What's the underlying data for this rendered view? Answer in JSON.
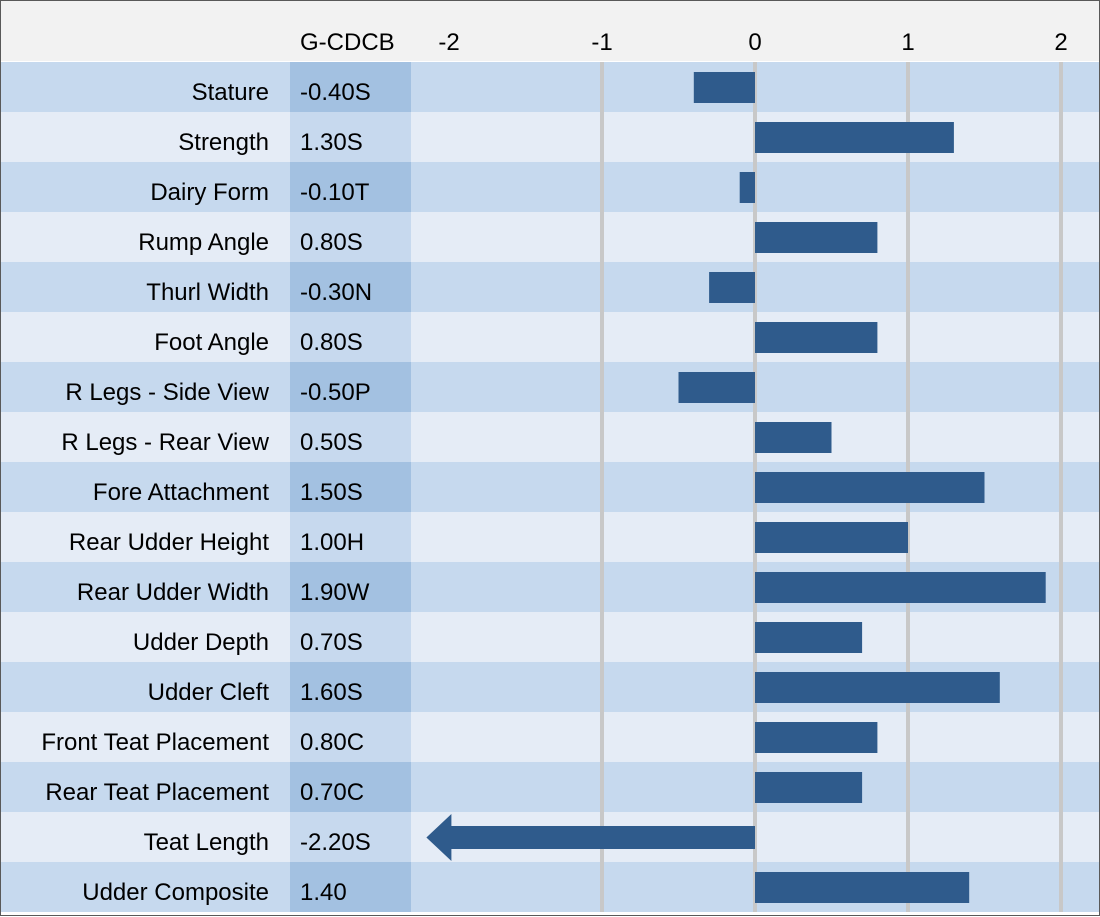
{
  "header": {
    "column_label": "G-CDCB"
  },
  "chart_data": {
    "type": "bar",
    "orientation": "horizontal",
    "xlim": [
      -2.2,
      2.1
    ],
    "xticks": [
      "-2",
      "-1",
      "0",
      "1",
      "2"
    ],
    "grid": "vertical lines at ticks",
    "colors": {
      "bar": "#2f5b8c",
      "row_dark": "#c6d9ee",
      "row_light": "#e5ecf6",
      "value_col_dark": "#a3c1e1",
      "value_col_light": "#c7d9ee",
      "header_bg": "#f2f2f2",
      "gridline": "#c8c8c8"
    },
    "rows": [
      {
        "label": "Stature",
        "value_text": "-0.40S",
        "value": -0.4
      },
      {
        "label": "Strength",
        "value_text": "1.30S",
        "value": 1.3
      },
      {
        "label": "Dairy Form",
        "value_text": "-0.10T",
        "value": -0.1
      },
      {
        "label": "Rump Angle",
        "value_text": "0.80S",
        "value": 0.8
      },
      {
        "label": "Thurl Width",
        "value_text": "-0.30N",
        "value": -0.3
      },
      {
        "label": "Foot Angle",
        "value_text": "0.80S",
        "value": 0.8
      },
      {
        "label": "R Legs - Side View",
        "value_text": "-0.50P",
        "value": -0.5
      },
      {
        "label": "R Legs - Rear View",
        "value_text": "0.50S",
        "value": 0.5
      },
      {
        "label": "Fore Attachment",
        "value_text": "1.50S",
        "value": 1.5
      },
      {
        "label": "Rear Udder Height",
        "value_text": "1.00H",
        "value": 1.0
      },
      {
        "label": "Rear Udder Width",
        "value_text": "1.90W",
        "value": 1.9
      },
      {
        "label": "Udder Depth",
        "value_text": "0.70S",
        "value": 0.7
      },
      {
        "label": "Udder Cleft",
        "value_text": "1.60S",
        "value": 1.6
      },
      {
        "label": "Front Teat Placement",
        "value_text": "0.80C",
        "value": 0.8
      },
      {
        "label": "Rear Teat Placement",
        "value_text": "0.70C",
        "value": 0.7
      },
      {
        "label": "Teat Length",
        "value_text": "-2.20S",
        "value": -2.2,
        "clipped": true
      },
      {
        "label": "Udder Composite",
        "value_text": "1.40",
        "value": 1.4
      }
    ]
  }
}
